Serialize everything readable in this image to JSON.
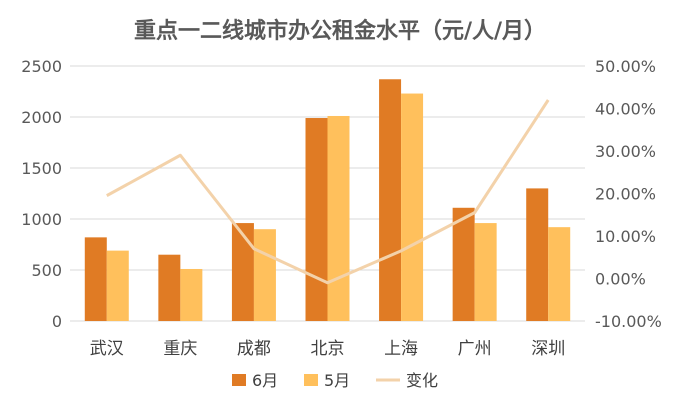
{
  "chart_data": {
    "type": "bar",
    "title": "重点一二线城市办公租金水平（元/人/月）",
    "categories": [
      "武汉",
      "重庆",
      "成都",
      "北京",
      "上海",
      "广州",
      "深圳"
    ],
    "series": [
      {
        "name": "6月",
        "type": "bar",
        "axis": "left",
        "color": "#e07b24",
        "values": [
          820,
          650,
          960,
          1990,
          2370,
          1110,
          1300
        ]
      },
      {
        "name": "5月",
        "type": "bar",
        "axis": "left",
        "color": "#ffc05c",
        "values": [
          690,
          510,
          900,
          2010,
          2230,
          960,
          920
        ]
      },
      {
        "name": "变化",
        "type": "line",
        "axis": "right",
        "color": "#f3d2aa",
        "values": [
          19.5,
          29.0,
          7.0,
          -1.0,
          6.5,
          15.5,
          42.0
        ]
      }
    ],
    "y_left": {
      "min": 0,
      "max": 2500,
      "ticks": [
        "0",
        "500",
        "1000",
        "1500",
        "2000",
        "2500"
      ]
    },
    "y_right": {
      "min": -10,
      "max": 50,
      "ticks": [
        "-10.00%",
        "0.00%",
        "10.00%",
        "20.00%",
        "30.00%",
        "40.00%",
        "50.00%"
      ]
    },
    "grid": true,
    "legend_position": "bottom"
  }
}
